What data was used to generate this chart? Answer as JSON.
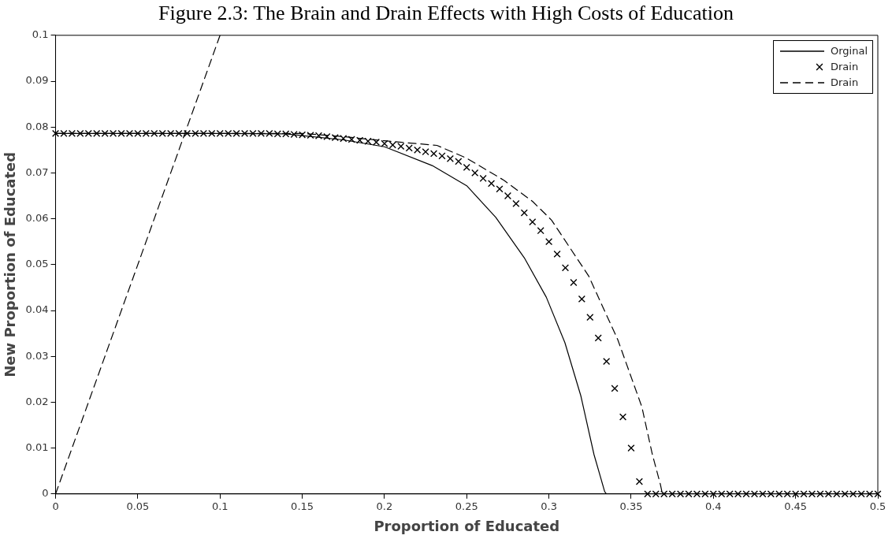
{
  "chart_data": {
    "type": "line",
    "title": "Figure 2.3: The Brain and Drain Effects with High Costs of Education",
    "xlabel": "Proportion of Educated",
    "ylabel": "New Proportion of Educated",
    "xlim": [
      0,
      0.5
    ],
    "ylim": [
      0,
      0.1
    ],
    "xticks": [
      0,
      0.05,
      0.1,
      0.15,
      0.2,
      0.25,
      0.3,
      0.35,
      0.4,
      0.45,
      0.5
    ],
    "yticks": [
      0,
      0.01,
      0.02,
      0.03,
      0.04,
      0.05,
      0.06,
      0.07,
      0.08,
      0.09,
      0.1
    ],
    "grid": false,
    "legend": "top right",
    "series": [
      {
        "name": "Orginal",
        "color": "#000000",
        "line_style": "solid",
        "x": [
          0,
          0.05,
          0.1,
          0.14,
          0.175,
          0.2,
          0.229,
          0.25,
          0.2677,
          0.285,
          0.2984,
          0.3097,
          0.3194,
          0.3274,
          0.3339,
          0.335,
          0.4,
          0.45,
          0.5
        ],
        "values": [
          0.0786,
          0.0786,
          0.0786,
          0.0785,
          0.0772,
          0.0757,
          0.0716,
          0.0672,
          0.0603,
          0.0515,
          0.0429,
          0.033,
          0.0214,
          0.0086,
          0.0005,
          0,
          0,
          0,
          0
        ]
      },
      {
        "name": "Drain",
        "type": "scatter",
        "marker": "cross",
        "color": "#000000",
        "x": [
          0,
          0.005,
          0.01,
          0.015,
          0.02,
          0.025,
          0.03,
          0.035,
          0.04,
          0.045,
          0.05,
          0.055,
          0.06,
          0.065,
          0.07,
          0.075,
          0.08,
          0.085,
          0.09,
          0.095,
          0.1,
          0.105,
          0.11,
          0.115,
          0.12,
          0.125,
          0.13,
          0.135,
          0.14,
          0.145,
          0.15,
          0.155,
          0.16,
          0.165,
          0.17,
          0.175,
          0.18,
          0.185,
          0.19,
          0.195,
          0.2,
          0.205,
          0.21,
          0.215,
          0.22,
          0.225,
          0.23,
          0.235,
          0.24,
          0.245,
          0.25,
          0.255,
          0.26,
          0.265,
          0.27,
          0.275,
          0.28,
          0.285,
          0.29,
          0.295,
          0.3,
          0.305,
          0.31,
          0.315,
          0.32,
          0.325,
          0.33,
          0.335,
          0.34,
          0.345,
          0.35,
          0.355,
          0.36,
          0.365,
          0.37,
          0.375,
          0.38,
          0.385,
          0.39,
          0.395,
          0.4,
          0.405,
          0.41,
          0.415,
          0.42,
          0.425,
          0.43,
          0.435,
          0.44,
          0.445,
          0.45,
          0.455,
          0.46,
          0.465,
          0.47,
          0.475,
          0.48,
          0.485,
          0.49,
          0.495,
          0.5
        ],
        "values": [
          0.0786,
          0.0786,
          0.0786,
          0.0786,
          0.0786,
          0.0786,
          0.0786,
          0.0786,
          0.0786,
          0.0786,
          0.0786,
          0.0786,
          0.0786,
          0.0786,
          0.0786,
          0.0786,
          0.0786,
          0.0786,
          0.0786,
          0.0786,
          0.0786,
          0.0786,
          0.0786,
          0.0786,
          0.0786,
          0.0786,
          0.0786,
          0.0785,
          0.0785,
          0.0784,
          0.0783,
          0.0782,
          0.0781,
          0.0779,
          0.0777,
          0.0775,
          0.0773,
          0.0771,
          0.0769,
          0.0767,
          0.0764,
          0.0761,
          0.0758,
          0.0754,
          0.075,
          0.0746,
          0.0742,
          0.0737,
          0.0731,
          0.0725,
          0.0712,
          0.07,
          0.0688,
          0.0677,
          0.0665,
          0.065,
          0.0633,
          0.0613,
          0.0593,
          0.0574,
          0.055,
          0.0523,
          0.0493,
          0.0461,
          0.0425,
          0.0385,
          0.034,
          0.0289,
          0.023,
          0.0168,
          0.01,
          0.0027,
          0,
          0,
          0,
          0,
          0,
          0,
          0,
          0,
          0,
          0,
          0,
          0,
          0,
          0,
          0,
          0,
          0,
          0,
          0,
          0,
          0,
          0,
          0,
          0,
          0,
          0,
          0,
          0,
          0
        ]
      },
      {
        "name": "Drain",
        "color": "#000000",
        "line_style": "dashed",
        "x": [
          0,
          0.05,
          0.1,
          0.15,
          0.175,
          0.2,
          0.2319,
          0.25,
          0.2726,
          0.29,
          0.3016,
          0.3242,
          0.3419,
          0.3565,
          0.3629,
          0.3677,
          0.369,
          0.4,
          0.45,
          0.5
        ],
        "values": [
          0.0786,
          0.0786,
          0.0786,
          0.0786,
          0.0779,
          0.077,
          0.076,
          0.0732,
          0.0684,
          0.0638,
          0.0597,
          0.0475,
          0.0336,
          0.019,
          0.0086,
          0.0022,
          0,
          0,
          0,
          0
        ]
      },
      {
        "color": "#000000",
        "line_style": "dashed",
        "x": [
          0,
          0.1
        ],
        "values": [
          0,
          0.1
        ]
      }
    ]
  }
}
